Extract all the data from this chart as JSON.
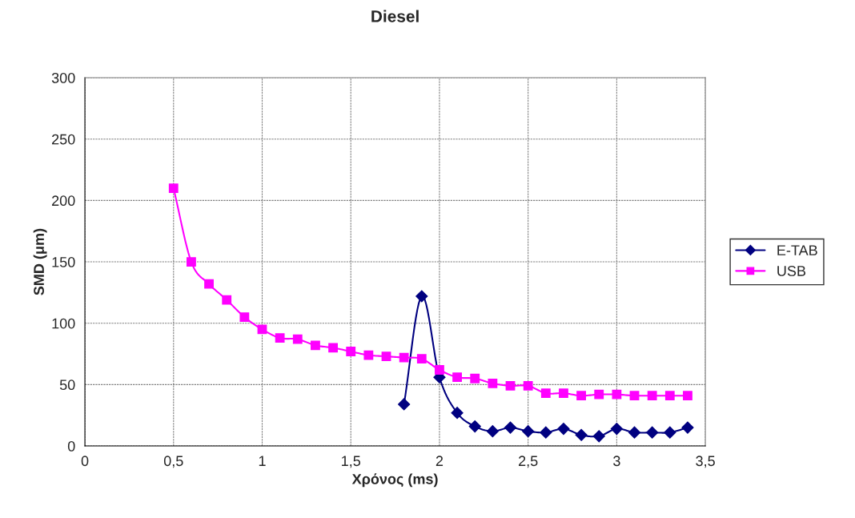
{
  "chart_data": {
    "type": "line",
    "title": "Diesel",
    "xlabel": "Χρόνος (ms)",
    "ylabel": "SMD (μm)",
    "xlim": [
      0,
      3.5
    ],
    "xticks": [
      0,
      {
        "value": 0.5,
        "label": "0,5"
      },
      1,
      {
        "value": 1.5,
        "label": "1,5"
      },
      2,
      {
        "value": 2.5,
        "label": "2,5"
      },
      3,
      {
        "value": 3.5,
        "label": "3,5"
      }
    ],
    "ylim": [
      0,
      300
    ],
    "yticks": [
      0,
      50,
      100,
      150,
      200,
      250,
      300
    ],
    "grid": true,
    "legend": "right",
    "series": [
      {
        "name": "E-TAB",
        "color": "#000080",
        "marker": "diamond",
        "x": [
          1.8,
          1.9,
          2.0,
          2.1,
          2.2,
          2.3,
          2.4,
          2.5,
          2.6,
          2.7,
          2.8,
          2.9,
          3.0,
          3.1,
          3.2,
          3.3,
          3.4
        ],
        "values": [
          34,
          122,
          56,
          27,
          16,
          12,
          15,
          12,
          11,
          14,
          9,
          8,
          14,
          11,
          11,
          11,
          15
        ]
      },
      {
        "name": "USB",
        "color": "#ff00ff",
        "marker": "square",
        "x": [
          0.5,
          0.6,
          0.7,
          0.8,
          0.9,
          1.0,
          1.1,
          1.2,
          1.3,
          1.4,
          1.5,
          1.6,
          1.7,
          1.8,
          1.9,
          2.0,
          2.1,
          2.2,
          2.3,
          2.4,
          2.5,
          2.6,
          2.7,
          2.8,
          2.9,
          3.0,
          3.1,
          3.2,
          3.3,
          3.4
        ],
        "values": [
          210,
          150,
          132,
          119,
          105,
          95,
          88,
          87,
          82,
          80,
          77,
          74,
          73,
          72,
          71,
          62,
          56,
          55,
          51,
          49,
          49,
          43,
          43,
          41,
          42,
          42,
          41,
          41,
          41,
          41
        ]
      }
    ]
  }
}
